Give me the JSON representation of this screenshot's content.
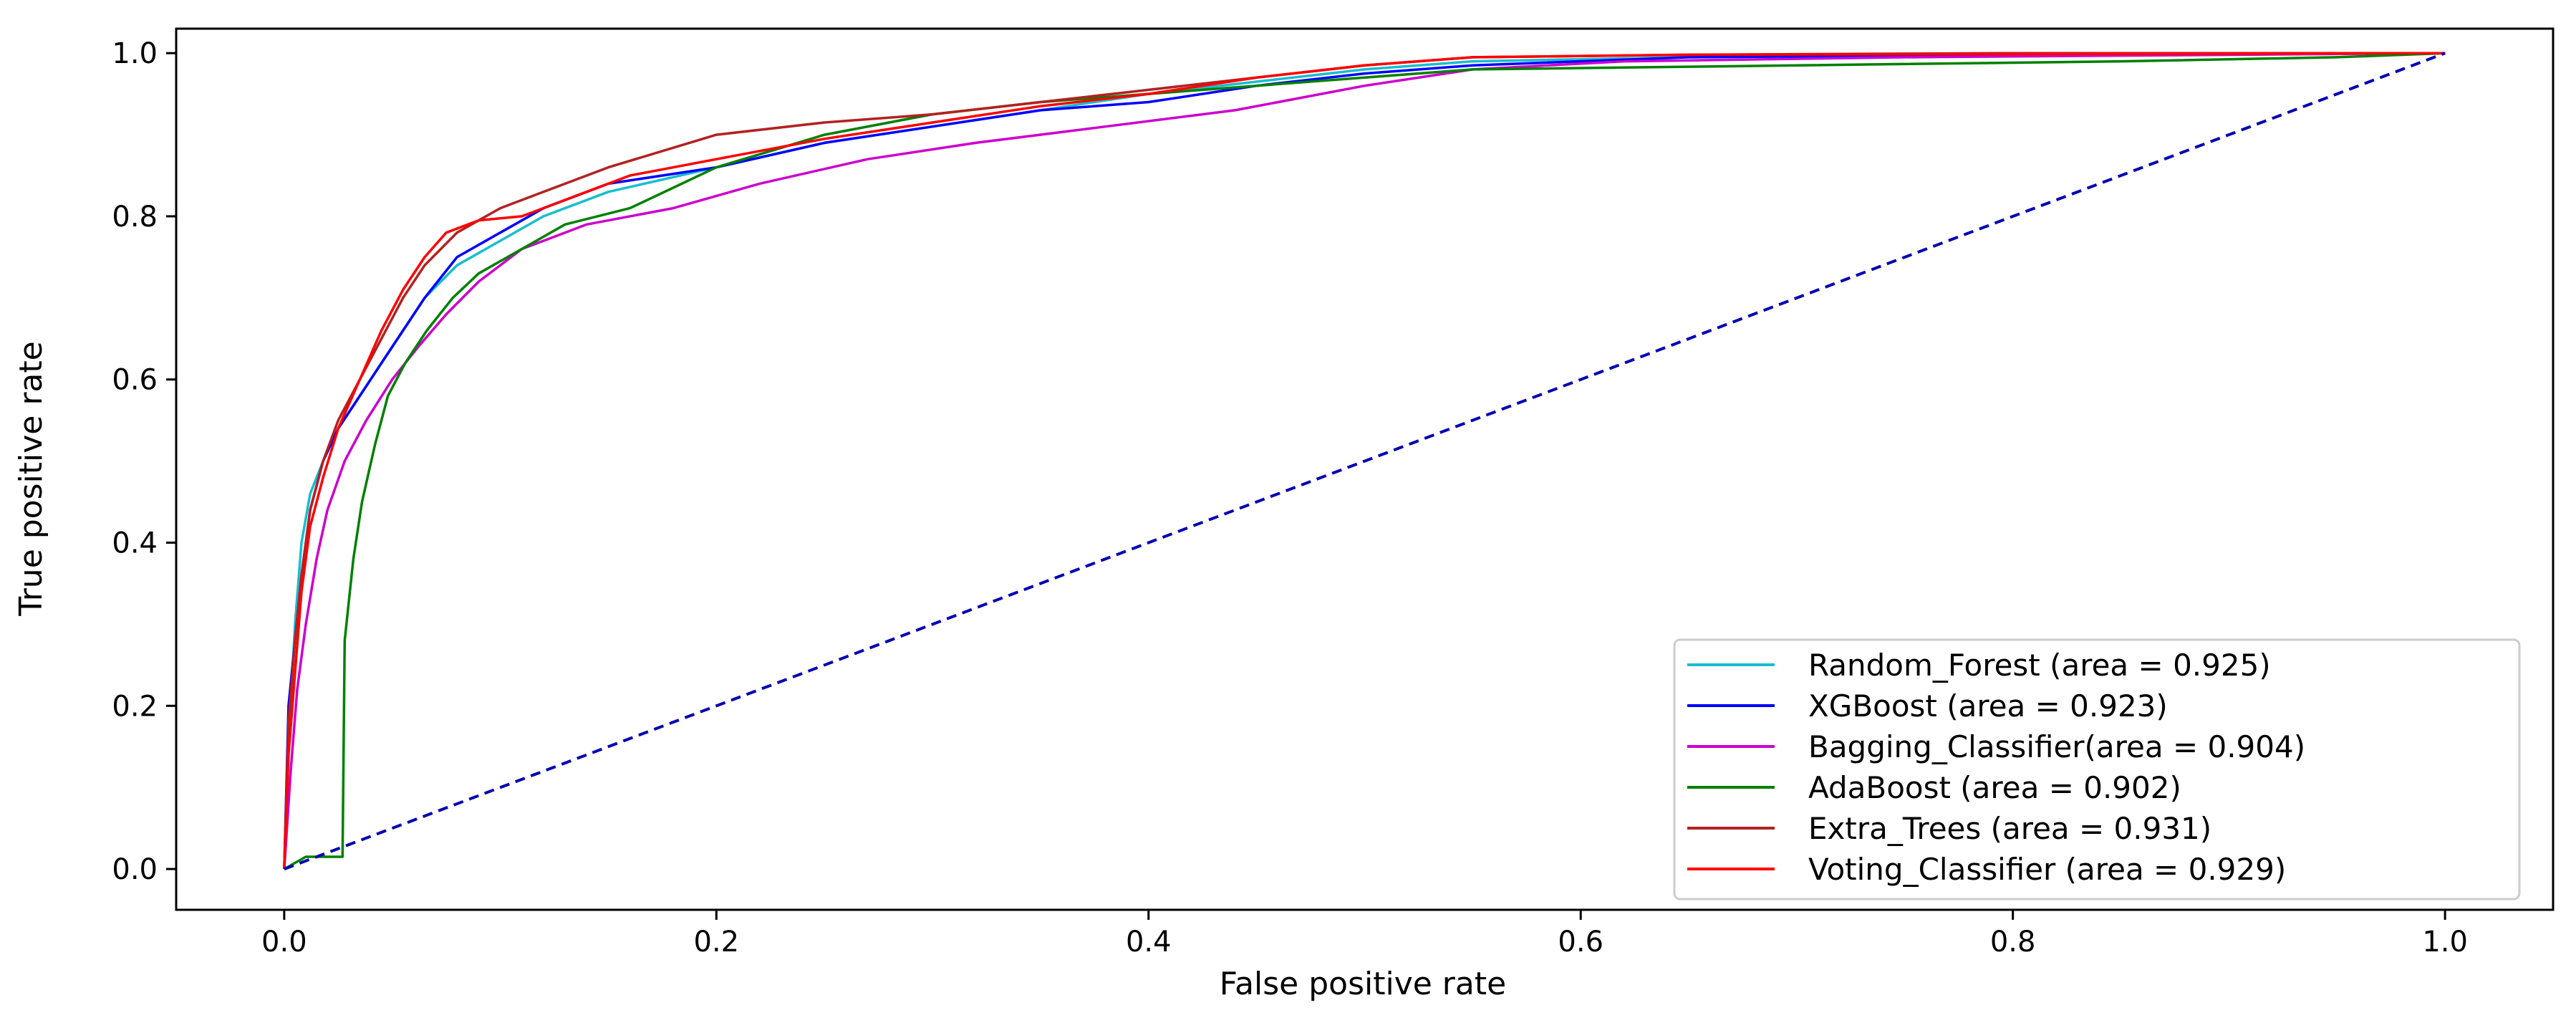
{
  "chart_data": {
    "type": "line",
    "title": "",
    "xlabel": "False positive rate",
    "ylabel": "True positive rate",
    "xlim": [
      -0.05,
      1.05
    ],
    "ylim": [
      -0.05,
      1.03
    ],
    "xticks": [
      0.0,
      0.2,
      0.4,
      0.6,
      0.8,
      1.0
    ],
    "xtick_labels": [
      "0.0",
      "0.2",
      "0.4",
      "0.6",
      "0.8",
      "1.0"
    ],
    "yticks": [
      0.0,
      0.2,
      0.4,
      0.6,
      0.8,
      1.0
    ],
    "ytick_labels": [
      "0.0",
      "0.2",
      "0.4",
      "0.6",
      "0.8",
      "1.0"
    ],
    "grid": false,
    "legend_position": "lower-right",
    "series": [
      {
        "name": "Random_Forest (area = 0.925)",
        "color": "#17becf",
        "points": [
          [
            0,
            0
          ],
          [
            0.002,
            0.15
          ],
          [
            0.005,
            0.3
          ],
          [
            0.008,
            0.4
          ],
          [
            0.012,
            0.46
          ],
          [
            0.018,
            0.5
          ],
          [
            0.025,
            0.54
          ],
          [
            0.035,
            0.58
          ],
          [
            0.045,
            0.62
          ],
          [
            0.055,
            0.66
          ],
          [
            0.065,
            0.7
          ],
          [
            0.08,
            0.74
          ],
          [
            0.1,
            0.77
          ],
          [
            0.12,
            0.8
          ],
          [
            0.15,
            0.83
          ],
          [
            0.2,
            0.86
          ],
          [
            0.25,
            0.89
          ],
          [
            0.3,
            0.91
          ],
          [
            0.35,
            0.93
          ],
          [
            0.4,
            0.95
          ],
          [
            0.45,
            0.965
          ],
          [
            0.5,
            0.98
          ],
          [
            0.55,
            0.99
          ],
          [
            0.65,
            0.995
          ],
          [
            0.8,
            0.998
          ],
          [
            1.0,
            1.0
          ]
        ]
      },
      {
        "name": "XGBoost (area = 0.923)",
        "color": "#0000ff",
        "points": [
          [
            0,
            0
          ],
          [
            0.002,
            0.2
          ],
          [
            0.005,
            0.28
          ],
          [
            0.008,
            0.36
          ],
          [
            0.012,
            0.44
          ],
          [
            0.018,
            0.5
          ],
          [
            0.025,
            0.54
          ],
          [
            0.035,
            0.58
          ],
          [
            0.045,
            0.62
          ],
          [
            0.055,
            0.66
          ],
          [
            0.065,
            0.7
          ],
          [
            0.08,
            0.75
          ],
          [
            0.1,
            0.78
          ],
          [
            0.12,
            0.81
          ],
          [
            0.15,
            0.84
          ],
          [
            0.2,
            0.86
          ],
          [
            0.25,
            0.89
          ],
          [
            0.3,
            0.91
          ],
          [
            0.35,
            0.93
          ],
          [
            0.4,
            0.94
          ],
          [
            0.45,
            0.96
          ],
          [
            0.5,
            0.975
          ],
          [
            0.55,
            0.985
          ],
          [
            0.65,
            0.995
          ],
          [
            0.8,
            0.998
          ],
          [
            1.0,
            1.0
          ]
        ]
      },
      {
        "name": "Bagging_Classifier(area = 0.904)",
        "color": "#cc00cc",
        "points": [
          [
            0,
            0
          ],
          [
            0.003,
            0.12
          ],
          [
            0.006,
            0.22
          ],
          [
            0.01,
            0.3
          ],
          [
            0.015,
            0.38
          ],
          [
            0.02,
            0.44
          ],
          [
            0.028,
            0.5
          ],
          [
            0.038,
            0.55
          ],
          [
            0.05,
            0.6
          ],
          [
            0.062,
            0.64
          ],
          [
            0.075,
            0.68
          ],
          [
            0.09,
            0.72
          ],
          [
            0.11,
            0.76
          ],
          [
            0.14,
            0.79
          ],
          [
            0.18,
            0.81
          ],
          [
            0.22,
            0.84
          ],
          [
            0.27,
            0.87
          ],
          [
            0.32,
            0.89
          ],
          [
            0.38,
            0.91
          ],
          [
            0.44,
            0.93
          ],
          [
            0.5,
            0.96
          ],
          [
            0.55,
            0.98
          ],
          [
            0.62,
            0.99
          ],
          [
            0.75,
            0.995
          ],
          [
            1.0,
            1.0
          ]
        ]
      },
      {
        "name": "AdaBoost (area = 0.902)",
        "color": "#008000",
        "points": [
          [
            0,
            0
          ],
          [
            0.01,
            0.015
          ],
          [
            0.027,
            0.015
          ],
          [
            0.028,
            0.28
          ],
          [
            0.032,
            0.38
          ],
          [
            0.036,
            0.45
          ],
          [
            0.042,
            0.52
          ],
          [
            0.048,
            0.58
          ],
          [
            0.056,
            0.62
          ],
          [
            0.066,
            0.66
          ],
          [
            0.078,
            0.7
          ],
          [
            0.09,
            0.73
          ],
          [
            0.11,
            0.76
          ],
          [
            0.13,
            0.79
          ],
          [
            0.16,
            0.81
          ],
          [
            0.2,
            0.86
          ],
          [
            0.25,
            0.9
          ],
          [
            0.3,
            0.925
          ],
          [
            0.35,
            0.94
          ],
          [
            0.4,
            0.95
          ],
          [
            0.45,
            0.96
          ],
          [
            0.5,
            0.97
          ],
          [
            0.55,
            0.98
          ],
          [
            0.7,
            0.985
          ],
          [
            0.85,
            0.99
          ],
          [
            0.95,
            0.995
          ],
          [
            1.0,
            1.0
          ]
        ]
      },
      {
        "name": "Extra_Trees (area = 0.931)",
        "color": "#b22222",
        "points": [
          [
            0,
            0
          ],
          [
            0.002,
            0.18
          ],
          [
            0.005,
            0.28
          ],
          [
            0.008,
            0.36
          ],
          [
            0.012,
            0.44
          ],
          [
            0.018,
            0.5
          ],
          [
            0.025,
            0.55
          ],
          [
            0.035,
            0.6
          ],
          [
            0.045,
            0.65
          ],
          [
            0.055,
            0.7
          ],
          [
            0.065,
            0.74
          ],
          [
            0.08,
            0.78
          ],
          [
            0.1,
            0.81
          ],
          [
            0.12,
            0.83
          ],
          [
            0.15,
            0.86
          ],
          [
            0.2,
            0.9
          ],
          [
            0.25,
            0.915
          ],
          [
            0.3,
            0.925
          ],
          [
            0.35,
            0.94
          ],
          [
            0.4,
            0.955
          ],
          [
            0.45,
            0.97
          ],
          [
            0.5,
            0.985
          ],
          [
            0.55,
            0.995
          ],
          [
            0.65,
            0.998
          ],
          [
            0.8,
            1.0
          ],
          [
            1.0,
            1.0
          ]
        ]
      },
      {
        "name": "Voting_Classifier (area = 0.929)",
        "color": "#ff0000",
        "points": [
          [
            0,
            0
          ],
          [
            0.002,
            0.14
          ],
          [
            0.005,
            0.24
          ],
          [
            0.008,
            0.34
          ],
          [
            0.012,
            0.42
          ],
          [
            0.018,
            0.48
          ],
          [
            0.025,
            0.54
          ],
          [
            0.035,
            0.6
          ],
          [
            0.045,
            0.66
          ],
          [
            0.055,
            0.71
          ],
          [
            0.065,
            0.75
          ],
          [
            0.075,
            0.78
          ],
          [
            0.09,
            0.795
          ],
          [
            0.11,
            0.8
          ],
          [
            0.13,
            0.82
          ],
          [
            0.16,
            0.85
          ],
          [
            0.2,
            0.87
          ],
          [
            0.25,
            0.895
          ],
          [
            0.3,
            0.915
          ],
          [
            0.35,
            0.935
          ],
          [
            0.4,
            0.95
          ],
          [
            0.45,
            0.97
          ],
          [
            0.5,
            0.985
          ],
          [
            0.55,
            0.995
          ],
          [
            0.65,
            0.998
          ],
          [
            1.0,
            1.0
          ]
        ]
      },
      {
        "name": "chance",
        "color": "#0000b3",
        "dashed": true,
        "points": [
          [
            0,
            0
          ],
          [
            1,
            1
          ]
        ]
      }
    ],
    "legend": [
      {
        "label": "Random_Forest (area = 0.925)",
        "color": "#17becf"
      },
      {
        "label": "XGBoost (area = 0.923)",
        "color": "#0000ff"
      },
      {
        "label": "Bagging_Classifier(area = 0.904)",
        "color": "#cc00cc"
      },
      {
        "label": "AdaBoost (area = 0.902)",
        "color": "#008000"
      },
      {
        "label": "Extra_Trees (area = 0.931)",
        "color": "#b22222"
      },
      {
        "label": "Voting_Classifier (area = 0.929)",
        "color": "#ff0000"
      }
    ]
  }
}
